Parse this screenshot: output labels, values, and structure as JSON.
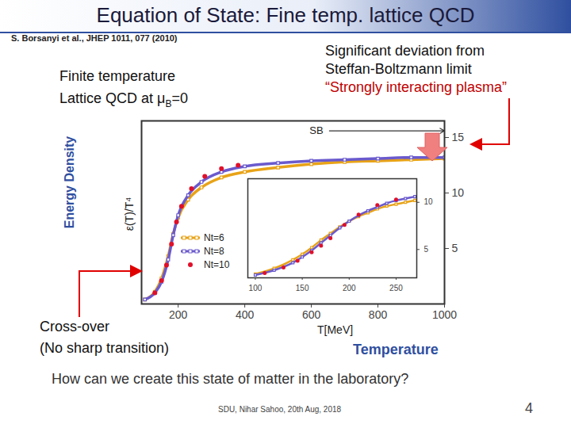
{
  "slide": {
    "title": "Equation of State: Fine temp. lattice QCD",
    "citation": "S. Borsanyi et al., JHEP 1011, 077 (2010)",
    "left_note": {
      "line1": "Finite temperature",
      "line2": "Lattice QCD at μ",
      "line2_sub": "B",
      "line2_end": "=0"
    },
    "right_note": [
      "Significant deviation from",
      "Steffan-Boltzmann limit"
    ],
    "right_note_red": "“Strongly interacting plasma”",
    "y_caption": "Energy Density",
    "crossover": [
      "Cross-over",
      "(No sharp transition)"
    ],
    "x_caption": "Temperature",
    "question": "How can we create this state of matter in the laboratory?",
    "footer": "SDU, Nihar Sahoo, 20th Aug, 2018",
    "page": 4
  },
  "chart_data": [
    {
      "type": "line",
      "xlabel": "T[MeV]",
      "ylabel": "ε(T)/T⁴",
      "xlim": [
        90,
        1000
      ],
      "ylim": [
        0,
        16.5
      ],
      "xticks": [
        200,
        400,
        600,
        800,
        1000
      ],
      "yticks": [
        5,
        10,
        15
      ],
      "grid": false,
      "legend": "bottom-left",
      "annotation": {
        "text": "SB",
        "value": 15.6
      },
      "series": [
        {
          "name": "Nt=6",
          "color": "#e8a317",
          "type": "line",
          "marker": "square",
          "line_style": "solid",
          "x": [
            100,
            130,
            150,
            170,
            185,
            200,
            230,
            270,
            330,
            400,
            500,
            600,
            700,
            800,
            900,
            1000
          ],
          "values": [
            0.4,
            1.1,
            2.3,
            4.3,
            6.3,
            7.8,
            9.4,
            10.5,
            11.4,
            11.9,
            12.3,
            12.6,
            12.8,
            12.9,
            13.0,
            13.1
          ]
        },
        {
          "name": "Nt=8",
          "color": "#6a5acd",
          "type": "line",
          "marker": "square",
          "line_style": "solid",
          "x": [
            100,
            130,
            150,
            170,
            185,
            200,
            230,
            270,
            330,
            400,
            500,
            600,
            700,
            800,
            900,
            1000
          ],
          "values": [
            0.4,
            1.0,
            2.0,
            4.0,
            6.2,
            8.0,
            9.8,
            11.0,
            11.9,
            12.4,
            12.7,
            12.9,
            13.0,
            13.1,
            13.2,
            13.2
          ]
        },
        {
          "name": "Nt=10",
          "color": "#e0102a",
          "type": "scatter",
          "marker": "circle",
          "x": [
            130,
            150,
            165,
            180,
            195,
            210,
            240,
            280,
            330,
            380
          ],
          "values": [
            1.0,
            2.1,
            3.5,
            5.4,
            7.4,
            8.8,
            10.4,
            11.5,
            12.2,
            12.5
          ]
        }
      ]
    },
    {
      "type": "line",
      "xlim": [
        92,
        272
      ],
      "ylim": [
        2,
        12.5
      ],
      "xticks": [
        100,
        150,
        200,
        250
      ],
      "yticks": [
        5,
        10
      ],
      "grid": false,
      "series": [
        {
          "name": "Nt=6",
          "color": "#e8a317",
          "type": "line",
          "marker": "square",
          "line_style": "solid",
          "x": [
            100,
            120,
            140,
            150,
            160,
            170,
            180,
            190,
            200,
            210,
            220,
            230,
            240,
            250,
            260,
            270
          ],
          "values": [
            2.4,
            3.0,
            3.9,
            4.5,
            5.2,
            6.0,
            6.7,
            7.4,
            8.0,
            8.5,
            8.9,
            9.3,
            9.6,
            9.8,
            10.0,
            10.2
          ]
        },
        {
          "name": "Nt=8",
          "color": "#6a5acd",
          "type": "line",
          "marker": "square",
          "line_style": "solid",
          "x": [
            100,
            120,
            140,
            150,
            160,
            170,
            180,
            190,
            200,
            210,
            220,
            230,
            240,
            250,
            260,
            270
          ],
          "values": [
            2.3,
            2.8,
            3.6,
            4.2,
            4.9,
            5.7,
            6.5,
            7.3,
            8.0,
            8.6,
            9.1,
            9.5,
            9.9,
            10.2,
            10.4,
            10.6
          ]
        },
        {
          "name": "Nt=10",
          "color": "#e0102a",
          "type": "scatter",
          "marker": "circle",
          "x": [
            110,
            130,
            145,
            160,
            170,
            180,
            195,
            210,
            230,
            250
          ],
          "values": [
            2.5,
            3.1,
            3.8,
            4.7,
            5.4,
            6.2,
            7.6,
            8.7,
            9.7,
            10.3
          ]
        }
      ]
    }
  ]
}
